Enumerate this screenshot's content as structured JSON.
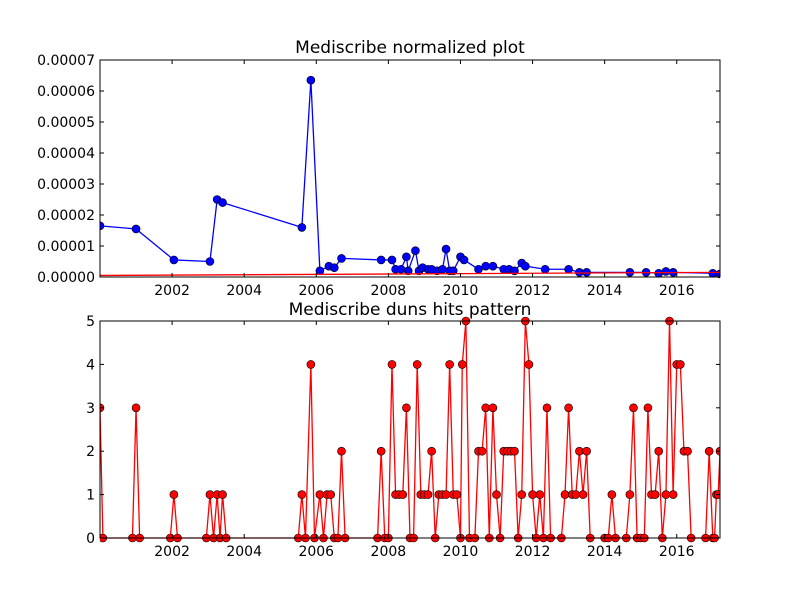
{
  "chart_data": [
    {
      "type": "line",
      "title": "Mediscribe normalized plot",
      "xlabel": "",
      "ylabel": "",
      "xlim": [
        2000.0,
        2017.2
      ],
      "ylim": [
        0,
        7e-05
      ],
      "x_ticks": [
        2002,
        2004,
        2006,
        2008,
        2010,
        2012,
        2014,
        2016
      ],
      "x_tick_labels": [
        "2002",
        "2004",
        "2006",
        "2008",
        "2010",
        "2012",
        "2014",
        "2016"
      ],
      "y_ticks": [
        0,
        1e-05,
        2e-05,
        3e-05,
        4e-05,
        5e-05,
        6e-05,
        7e-05
      ],
      "y_tick_labels": [
        "0.00000",
        "0.00001",
        "0.00002",
        "0.00003",
        "0.00004",
        "0.00005",
        "0.00006",
        "0.00007"
      ],
      "grid": false,
      "legend": "none",
      "series": [
        {
          "color": "#0000ff",
          "marker": "circle",
          "points": [
            [
              2000.0,
              1.65e-05
            ],
            [
              2001.0,
              1.55e-05
            ],
            [
              2002.05,
              5.5e-06
            ],
            [
              2003.05,
              5e-06
            ],
            [
              2003.25,
              2.5e-05
            ],
            [
              2003.4,
              2.4e-05
            ],
            [
              2005.6,
              1.6e-05
            ],
            [
              2005.85,
              6.35e-05
            ],
            [
              2006.1,
              2e-06
            ],
            [
              2006.35,
              3.5e-06
            ],
            [
              2006.5,
              3e-06
            ],
            [
              2006.7,
              6e-06
            ],
            [
              2007.8,
              5.5e-06
            ],
            [
              2008.1,
              5.5e-06
            ],
            [
              2008.2,
              2.5e-06
            ],
            [
              2008.35,
              2.5e-06
            ],
            [
              2008.5,
              6.5e-06
            ],
            [
              2008.55,
              2e-06
            ],
            [
              2008.75,
              8.5e-06
            ],
            [
              2008.85,
              2e-06
            ],
            [
              2008.95,
              3e-06
            ],
            [
              2009.1,
              2.5e-06
            ],
            [
              2009.2,
              2.5e-06
            ],
            [
              2009.35,
              2e-06
            ],
            [
              2009.5,
              2.5e-06
            ],
            [
              2009.6,
              9e-06
            ],
            [
              2009.7,
              2e-06
            ],
            [
              2009.8,
              2e-06
            ],
            [
              2010.0,
              6.5e-06
            ],
            [
              2010.1,
              5.5e-06
            ],
            [
              2010.5,
              2.5e-06
            ],
            [
              2010.7,
              3.5e-06
            ],
            [
              2010.9,
              3.5e-06
            ],
            [
              2011.2,
              2.5e-06
            ],
            [
              2011.35,
              2.5e-06
            ],
            [
              2011.5,
              2e-06
            ],
            [
              2011.7,
              4.5e-06
            ],
            [
              2011.8,
              3.5e-06
            ],
            [
              2012.35,
              2.5e-06
            ],
            [
              2013.0,
              2.5e-06
            ],
            [
              2013.3,
              1.5e-06
            ],
            [
              2013.5,
              1.5e-06
            ],
            [
              2014.7,
              1.5e-06
            ],
            [
              2015.15,
              1.5e-06
            ],
            [
              2015.5,
              1.2e-06
            ],
            [
              2015.7,
              1.8e-06
            ],
            [
              2015.9,
              1.5e-06
            ],
            [
              2017.0,
              1.2e-06
            ],
            [
              2017.2,
              1e-06
            ]
          ]
        },
        {
          "color": "#ff0000",
          "marker": "none",
          "points": [
            [
              2000.0,
              5e-07
            ],
            [
              2017.2,
              1.5e-06
            ]
          ]
        }
      ]
    },
    {
      "type": "line",
      "title": "Mediscribe duns hits pattern",
      "xlabel": "",
      "ylabel": "",
      "xlim": [
        2000.0,
        2017.2
      ],
      "ylim": [
        0,
        5
      ],
      "x_ticks": [
        2002,
        2004,
        2006,
        2008,
        2010,
        2012,
        2014,
        2016
      ],
      "x_tick_labels": [
        "2002",
        "2004",
        "2006",
        "2008",
        "2010",
        "2012",
        "2014",
        "2016"
      ],
      "y_ticks": [
        0,
        1,
        2,
        3,
        4,
        5
      ],
      "y_tick_labels": [
        "0",
        "1",
        "2",
        "3",
        "4",
        "5"
      ],
      "grid": false,
      "legend": "none",
      "series": [
        {
          "color": "#ff0000",
          "marker": "circle",
          "points": [
            [
              2000.0,
              3
            ],
            [
              2000.08,
              0
            ],
            [
              2000.9,
              0
            ],
            [
              2001.0,
              3
            ],
            [
              2001.1,
              0
            ],
            [
              2001.95,
              0
            ],
            [
              2002.05,
              1
            ],
            [
              2002.15,
              0
            ],
            [
              2002.95,
              0
            ],
            [
              2003.05,
              1
            ],
            [
              2003.15,
              0
            ],
            [
              2003.25,
              1
            ],
            [
              2003.33,
              0
            ],
            [
              2003.4,
              1
            ],
            [
              2003.5,
              0
            ],
            [
              2005.5,
              0
            ],
            [
              2005.6,
              1
            ],
            [
              2005.7,
              0
            ],
            [
              2005.85,
              4
            ],
            [
              2005.95,
              0
            ],
            [
              2006.1,
              1
            ],
            [
              2006.2,
              0
            ],
            [
              2006.3,
              1
            ],
            [
              2006.4,
              1
            ],
            [
              2006.5,
              0
            ],
            [
              2006.6,
              0
            ],
            [
              2006.7,
              2
            ],
            [
              2006.8,
              0
            ],
            [
              2007.7,
              0
            ],
            [
              2007.8,
              2
            ],
            [
              2007.9,
              0
            ],
            [
              2008.0,
              0
            ],
            [
              2008.1,
              4
            ],
            [
              2008.2,
              1
            ],
            [
              2008.3,
              1
            ],
            [
              2008.4,
              1
            ],
            [
              2008.5,
              3
            ],
            [
              2008.6,
              0
            ],
            [
              2008.7,
              0
            ],
            [
              2008.8,
              4
            ],
            [
              2008.9,
              1
            ],
            [
              2009.0,
              1
            ],
            [
              2009.1,
              1
            ],
            [
              2009.2,
              2
            ],
            [
              2009.3,
              0
            ],
            [
              2009.4,
              1
            ],
            [
              2009.5,
              1
            ],
            [
              2009.6,
              1
            ],
            [
              2009.7,
              4
            ],
            [
              2009.8,
              1
            ],
            [
              2009.9,
              1
            ],
            [
              2010.0,
              0
            ],
            [
              2010.05,
              4
            ],
            [
              2010.15,
              5
            ],
            [
              2010.25,
              0
            ],
            [
              2010.4,
              0
            ],
            [
              2010.5,
              2
            ],
            [
              2010.6,
              2
            ],
            [
              2010.7,
              3
            ],
            [
              2010.8,
              0
            ],
            [
              2010.9,
              3
            ],
            [
              2011.0,
              1
            ],
            [
              2011.1,
              0
            ],
            [
              2011.2,
              2
            ],
            [
              2011.3,
              2
            ],
            [
              2011.4,
              2
            ],
            [
              2011.5,
              2
            ],
            [
              2011.6,
              0
            ],
            [
              2011.7,
              1
            ],
            [
              2011.8,
              5
            ],
            [
              2011.9,
              4
            ],
            [
              2012.0,
              1
            ],
            [
              2012.1,
              0
            ],
            [
              2012.2,
              1
            ],
            [
              2012.3,
              0
            ],
            [
              2012.4,
              3
            ],
            [
              2012.5,
              0
            ],
            [
              2012.8,
              0
            ],
            [
              2012.9,
              1
            ],
            [
              2013.0,
              3
            ],
            [
              2013.1,
              1
            ],
            [
              2013.2,
              1
            ],
            [
              2013.3,
              2
            ],
            [
              2013.4,
              1
            ],
            [
              2013.5,
              2
            ],
            [
              2013.6,
              0
            ],
            [
              2014.0,
              0
            ],
            [
              2014.1,
              0
            ],
            [
              2014.2,
              1
            ],
            [
              2014.3,
              0
            ],
            [
              2014.6,
              0
            ],
            [
              2014.7,
              1
            ],
            [
              2014.8,
              3
            ],
            [
              2014.9,
              0
            ],
            [
              2015.0,
              0
            ],
            [
              2015.1,
              0
            ],
            [
              2015.2,
              3
            ],
            [
              2015.3,
              1
            ],
            [
              2015.4,
              1
            ],
            [
              2015.5,
              2
            ],
            [
              2015.6,
              0
            ],
            [
              2015.7,
              1
            ],
            [
              2015.8,
              5
            ],
            [
              2015.9,
              1
            ],
            [
              2016.0,
              4
            ],
            [
              2016.1,
              4
            ],
            [
              2016.2,
              2
            ],
            [
              2016.3,
              2
            ],
            [
              2016.4,
              0
            ],
            [
              2016.8,
              0
            ],
            [
              2016.9,
              2
            ],
            [
              2017.0,
              0
            ],
            [
              2017.05,
              0
            ],
            [
              2017.1,
              1
            ],
            [
              2017.15,
              1
            ],
            [
              2017.2,
              2
            ]
          ]
        }
      ]
    }
  ]
}
